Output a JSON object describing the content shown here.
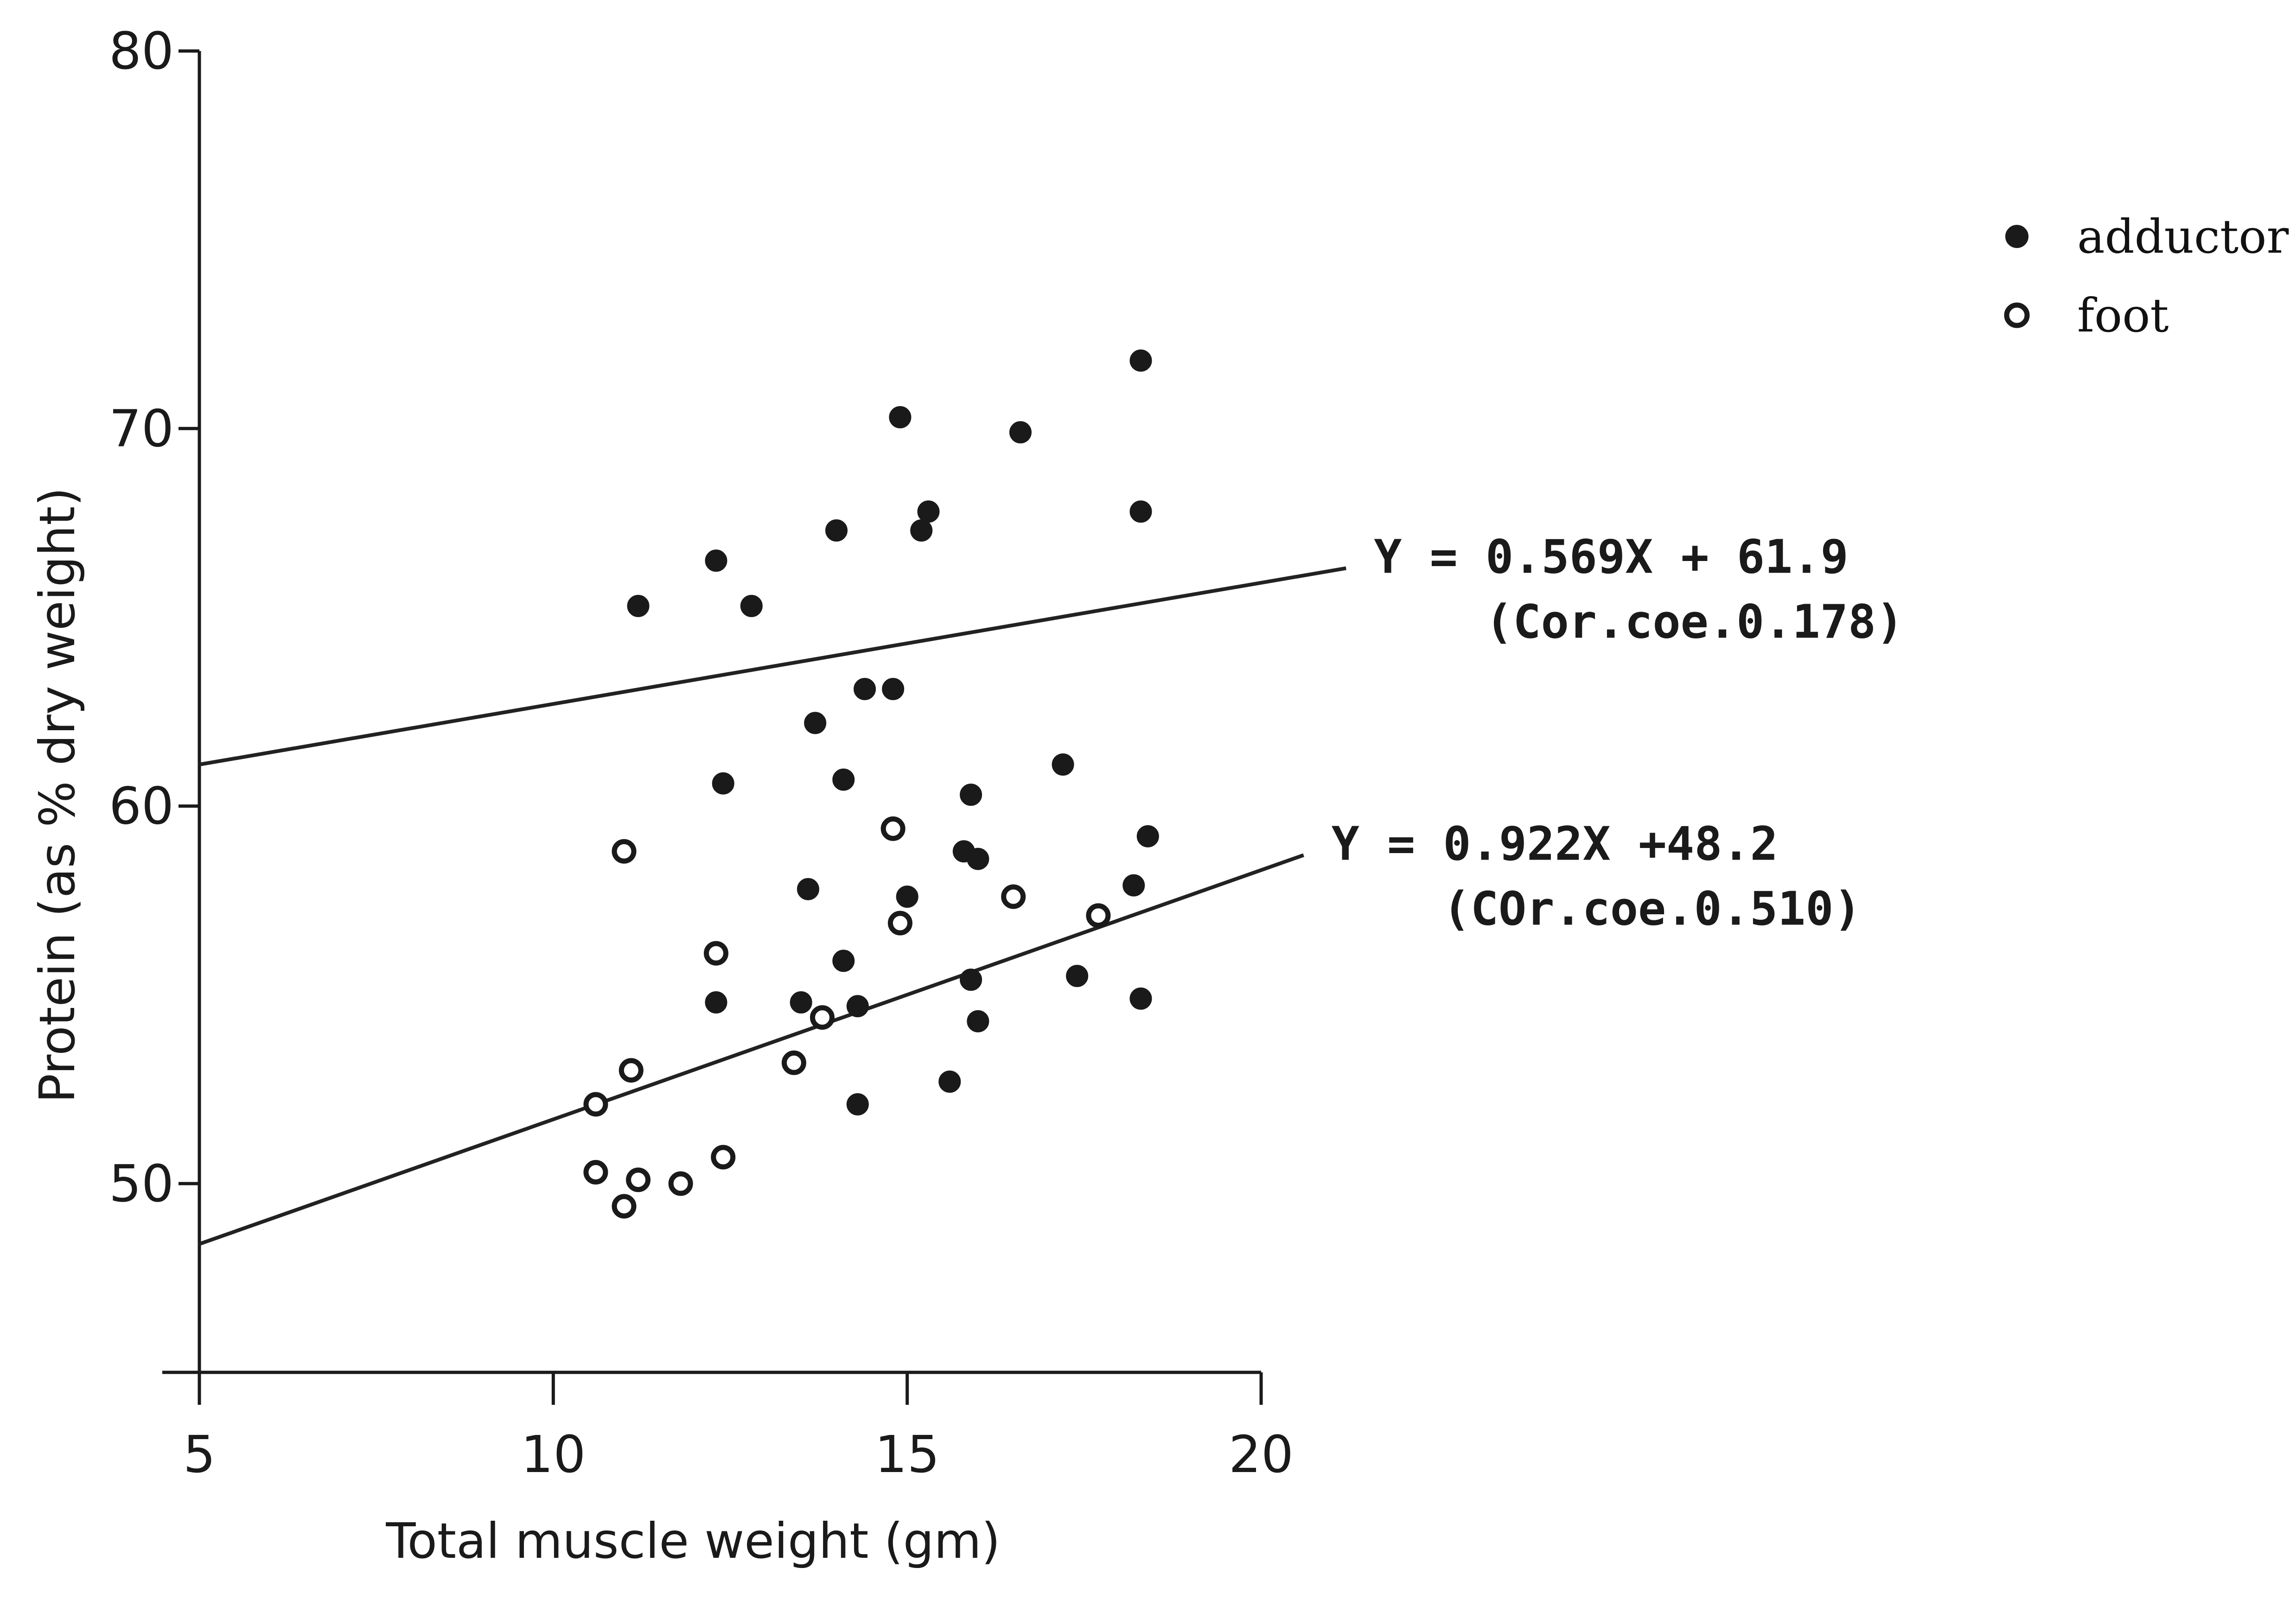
{
  "chart_data": {
    "type": "scatter",
    "title": "",
    "xlabel": "Total muscle weight (gm)",
    "ylabel": "Protein (as % dry weight)",
    "xlim": [
      5,
      20
    ],
    "ylim": [
      45,
      80
    ],
    "xticks": [
      "5",
      "10",
      "15",
      "20"
    ],
    "yticks": [
      "50",
      "60",
      "70",
      "80"
    ],
    "legend": {
      "position": "top-right",
      "entries": [
        {
          "marker": "filled-circle",
          "label": "adductor"
        },
        {
          "marker": "open-circle",
          "label": "foot"
        }
      ]
    },
    "series": [
      {
        "name": "adductor",
        "marker": "filled",
        "points": [
          [
            11.2,
            65.3
          ],
          [
            12.3,
            66.5
          ],
          [
            12.8,
            65.3
          ],
          [
            14.0,
            67.3
          ],
          [
            14.9,
            70.3
          ],
          [
            15.3,
            67.8
          ],
          [
            16.6,
            69.9
          ],
          [
            18.3,
            71.8
          ],
          [
            18.3,
            67.8
          ],
          [
            15.2,
            67.3
          ],
          [
            13.7,
            62.2
          ],
          [
            14.4,
            63.1
          ],
          [
            14.8,
            63.1
          ],
          [
            12.4,
            60.6
          ],
          [
            14.1,
            60.7
          ],
          [
            15.9,
            60.3
          ],
          [
            17.2,
            61.1
          ],
          [
            13.6,
            57.8
          ],
          [
            15.0,
            57.6
          ],
          [
            15.8,
            58.8
          ],
          [
            16.0,
            58.6
          ],
          [
            18.4,
            59.2
          ],
          [
            18.2,
            57.9
          ],
          [
            14.1,
            55.9
          ],
          [
            15.9,
            55.4
          ],
          [
            17.4,
            55.5
          ],
          [
            18.3,
            54.9
          ],
          [
            12.3,
            54.8
          ],
          [
            13.5,
            54.8
          ],
          [
            14.3,
            54.7
          ],
          [
            16.0,
            54.3
          ],
          [
            15.6,
            52.7
          ],
          [
            14.3,
            52.1
          ]
        ]
      },
      {
        "name": "foot",
        "marker": "open",
        "points": [
          [
            10.6,
            52.1
          ],
          [
            11.1,
            53.0
          ],
          [
            10.6,
            50.3
          ],
          [
            11.2,
            50.1
          ],
          [
            11.8,
            50.0
          ],
          [
            12.4,
            50.7
          ],
          [
            11.0,
            49.4
          ],
          [
            13.8,
            54.4
          ],
          [
            13.4,
            53.2
          ],
          [
            12.3,
            56.1
          ],
          [
            14.9,
            56.9
          ],
          [
            16.5,
            57.6
          ],
          [
            17.7,
            57.1
          ],
          [
            14.8,
            59.4
          ],
          [
            11.0,
            58.8
          ]
        ]
      }
    ],
    "fit_lines": [
      {
        "series": "adductor",
        "start": [
          5,
          61.1
        ],
        "end": [
          21.2,
          66.3
        ],
        "equation": "Y = 0.569X + 61.9",
        "coefficient": "(Cor.coe.0.178)"
      },
      {
        "series": "foot",
        "start": [
          5,
          48.4
        ],
        "end": [
          20.6,
          58.7
        ],
        "equation": "Y = 0.922X +48.2",
        "coefficient": "(COr.coe.0.510)"
      }
    ]
  }
}
